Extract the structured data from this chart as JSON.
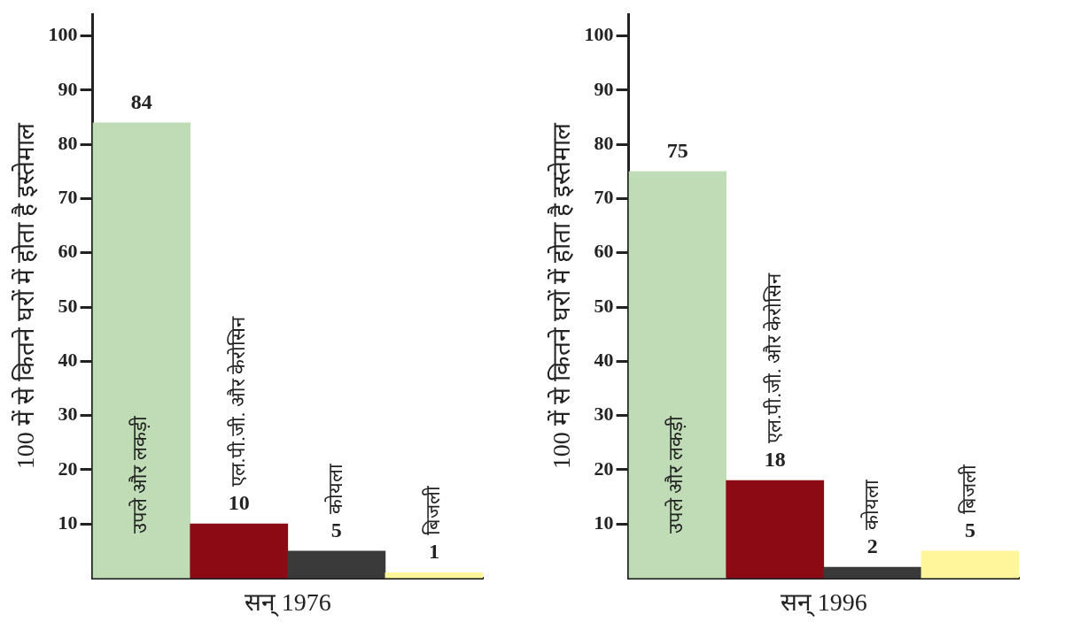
{
  "chart_data": [
    {
      "type": "bar",
      "xlabel": "सन् 1976",
      "ylabel": "100 में से कितने घरों में होता है इस्तेमाल",
      "categories": [
        "उपले और लकड़ी",
        "एल.पी.जी. और केरोसिन",
        "कोयला",
        "बिजली"
      ],
      "values": [
        84,
        10,
        5,
        1
      ],
      "colors": [
        "#bfdcb6",
        "#8b0a14",
        "#3a3a3a",
        "#fff59a"
      ],
      "ylim": [
        0,
        104
      ],
      "yticks": [
        10,
        20,
        30,
        40,
        50,
        60,
        70,
        80,
        90,
        100
      ],
      "data_labels": true,
      "grid": false,
      "legend": false
    },
    {
      "type": "bar",
      "xlabel": "सन् 1996",
      "ylabel": "100 में से कितने घरों में होता है इस्तेमाल",
      "categories": [
        "उपले और लकड़ी",
        "एल.पी.जी. और केरोसिन",
        "कोयला",
        "बिजली"
      ],
      "values": [
        75,
        18,
        2,
        5
      ],
      "colors": [
        "#bfdcb6",
        "#8b0a14",
        "#3a3a3a",
        "#fff59a"
      ],
      "ylim": [
        0,
        104
      ],
      "yticks": [
        10,
        20,
        30,
        40,
        50,
        60,
        70,
        80,
        90,
        100
      ],
      "data_labels": true,
      "grid": false,
      "legend": false
    }
  ]
}
